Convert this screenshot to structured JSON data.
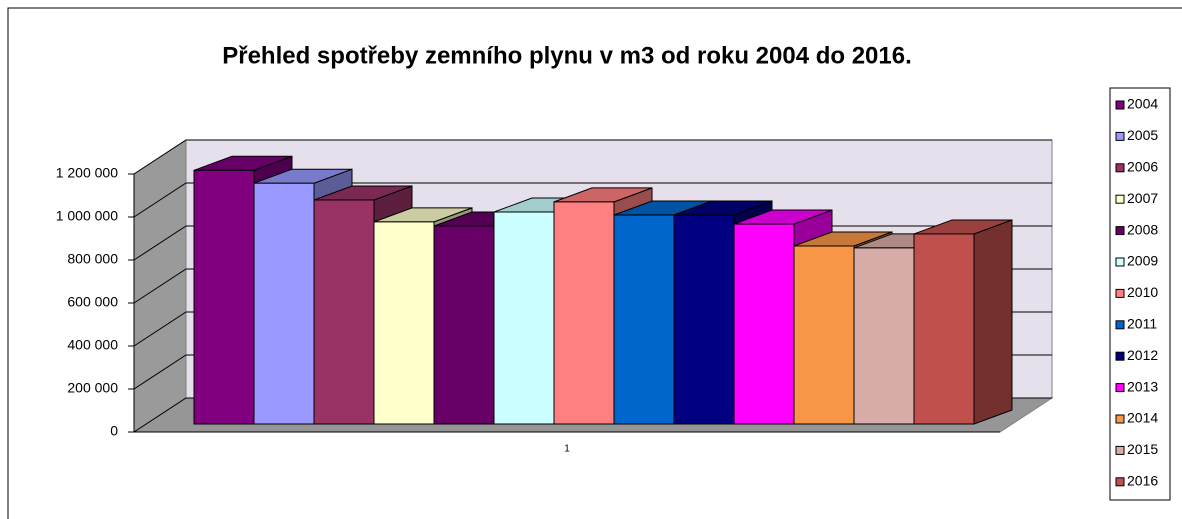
{
  "chart_data": {
    "type": "bar3d",
    "title": "Přehled spotřeby zemního plynu v m3 od roku 2004 do 2016.",
    "categories": [
      "1"
    ],
    "series": [
      {
        "name": "2004",
        "color": "#800080",
        "values": [
          1180000
        ]
      },
      {
        "name": "2005",
        "color": "#9999ff",
        "values": [
          1120000
        ]
      },
      {
        "name": "2006",
        "color": "#993366",
        "values": [
          1042000
        ]
      },
      {
        "name": "2007",
        "color": "#ffffcc",
        "values": [
          940000
        ]
      },
      {
        "name": "2008",
        "color": "#660066",
        "values": [
          921000
        ]
      },
      {
        "name": "2009",
        "color": "#ccffff",
        "values": [
          986000
        ]
      },
      {
        "name": "2010",
        "color": "#ff8080",
        "values": [
          1033000
        ]
      },
      {
        "name": "2011",
        "color": "#0066cc",
        "values": [
          972000
        ]
      },
      {
        "name": "2012",
        "color": "#000080",
        "values": [
          972000
        ]
      },
      {
        "name": "2013",
        "color": "#ff00ff",
        "values": [
          930000
        ]
      },
      {
        "name": "2014",
        "color": "#f79646",
        "values": [
          828000
        ]
      },
      {
        "name": "2015",
        "color": "#d8aca8",
        "values": [
          819000
        ]
      },
      {
        "name": "2016",
        "color": "#c0504d",
        "values": [
          884000
        ]
      }
    ],
    "ylim": [
      0,
      1200000
    ],
    "yticks": [
      0,
      {
        "value": 200000,
        "label": "200 000"
      },
      {
        "value": 400000,
        "label": "400 000"
      },
      {
        "value": 600000,
        "label": "600 000"
      },
      {
        "value": 800000,
        "label": "800 000"
      },
      {
        "value": 1000000,
        "label": "1 000 000"
      },
      {
        "value": 1200000,
        "label": "1 200 000"
      }
    ],
    "grid": true,
    "legend": "right"
  }
}
